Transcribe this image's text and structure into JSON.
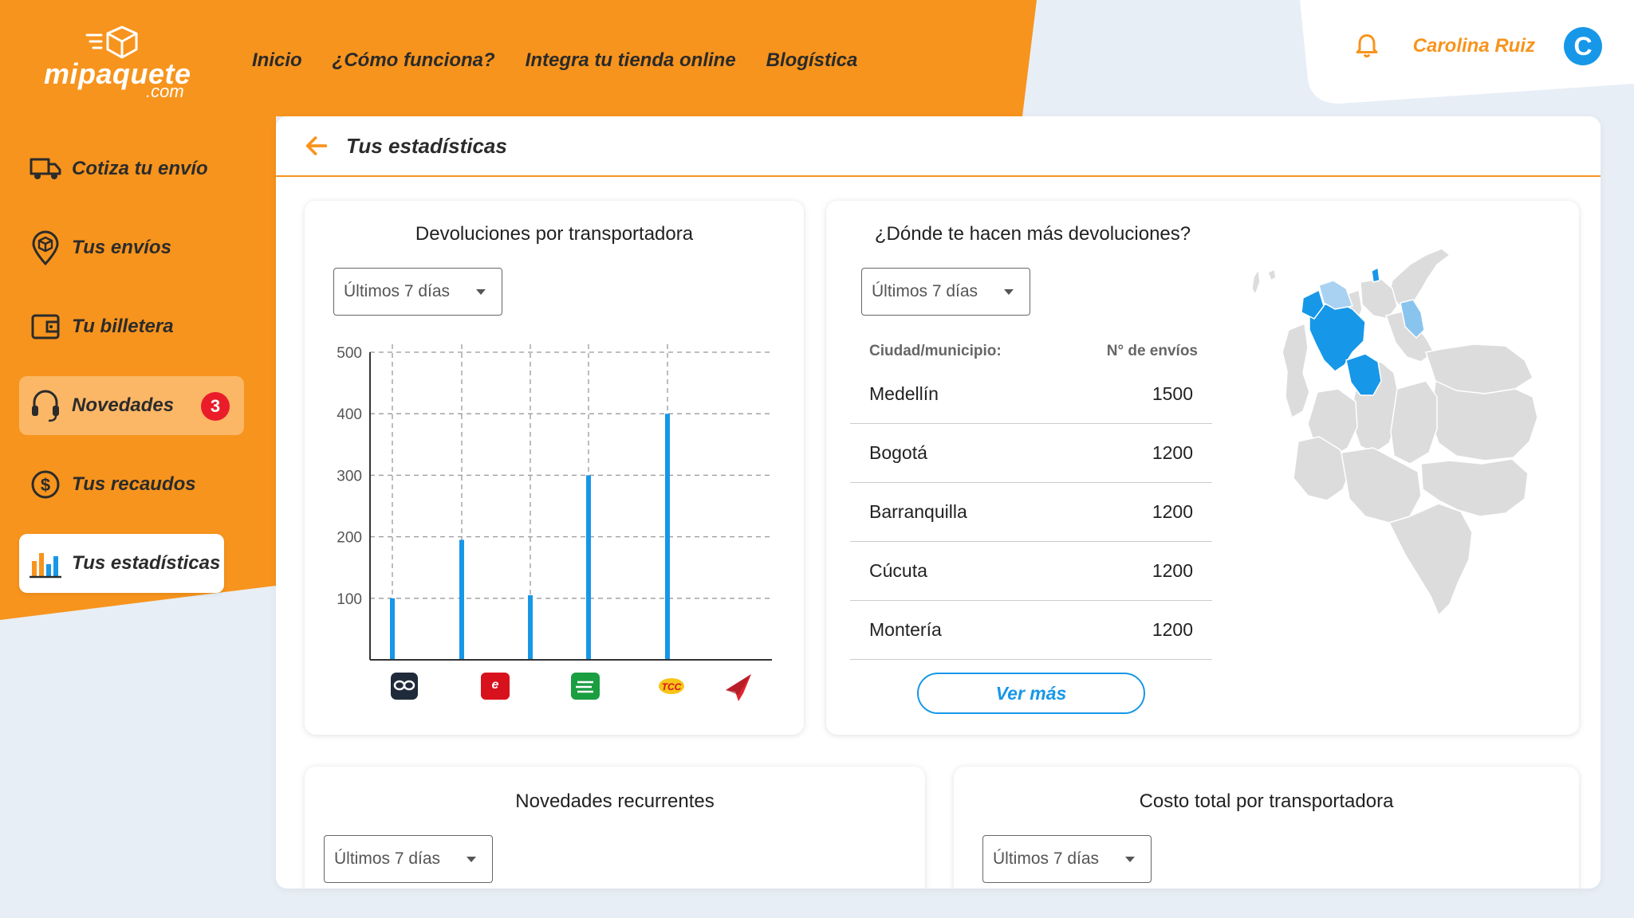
{
  "brand": {
    "name": "mipaquete",
    "sub": ".com"
  },
  "nav": {
    "items": [
      "Inicio",
      "¿Cómo funciona?",
      "Integra tu tienda online",
      "Blogística"
    ]
  },
  "user": {
    "name": "Carolina Ruiz",
    "initial": "C"
  },
  "sidebar": {
    "items": [
      {
        "label": "Cotiza tu envío",
        "icon": "truck-icon"
      },
      {
        "label": "Tus envíos",
        "icon": "package-pin-icon"
      },
      {
        "label": "Tu billetera",
        "icon": "wallet-icon"
      },
      {
        "label": "Novedades",
        "icon": "headset-icon",
        "badge": "3"
      },
      {
        "label": "Tus recaudos",
        "icon": "dollar-circle-icon"
      },
      {
        "label": "Tus estadísticas",
        "icon": "bar-chart-icon"
      }
    ]
  },
  "page": {
    "title": "Tus estadísticas"
  },
  "panels": {
    "devoluciones": {
      "title": "Devoluciones por transportadora",
      "filter": "Últimos 7 días"
    },
    "donde": {
      "title": "¿Dónde te hacen más devoluciones?",
      "filter": "Últimos 7 días",
      "col_city": "Ciudad/municipio:",
      "col_count": "N° de envíos",
      "rows": [
        {
          "city": "Medellín",
          "count": "1500"
        },
        {
          "city": "Bogotá",
          "count": "1200"
        },
        {
          "city": "Barranquilla",
          "count": "1200"
        },
        {
          "city": "Cúcuta",
          "count": "1200"
        },
        {
          "city": "Montería",
          "count": "1200"
        }
      ],
      "more_label": "Ver más"
    },
    "novedades": {
      "title": "Novedades recurrentes",
      "filter": "Últimos 7 días"
    },
    "costo": {
      "title": "Costo total por transportadora",
      "filter": "Últimos 7 días"
    }
  },
  "chart_data": {
    "type": "bar",
    "categories": [
      "Servientrega",
      "Envia",
      "Coordinadora",
      "TCC",
      "Paquetería"
    ],
    "values": [
      100,
      195,
      105,
      300,
      400
    ],
    "ylim": [
      0,
      500
    ],
    "yticks": [
      100,
      200,
      300,
      400,
      500
    ],
    "grid": true,
    "bar_color": "#1797e8"
  },
  "colors": {
    "accent": "#f7941d",
    "primary": "#1797e8",
    "badge": "#ea1c2a"
  }
}
